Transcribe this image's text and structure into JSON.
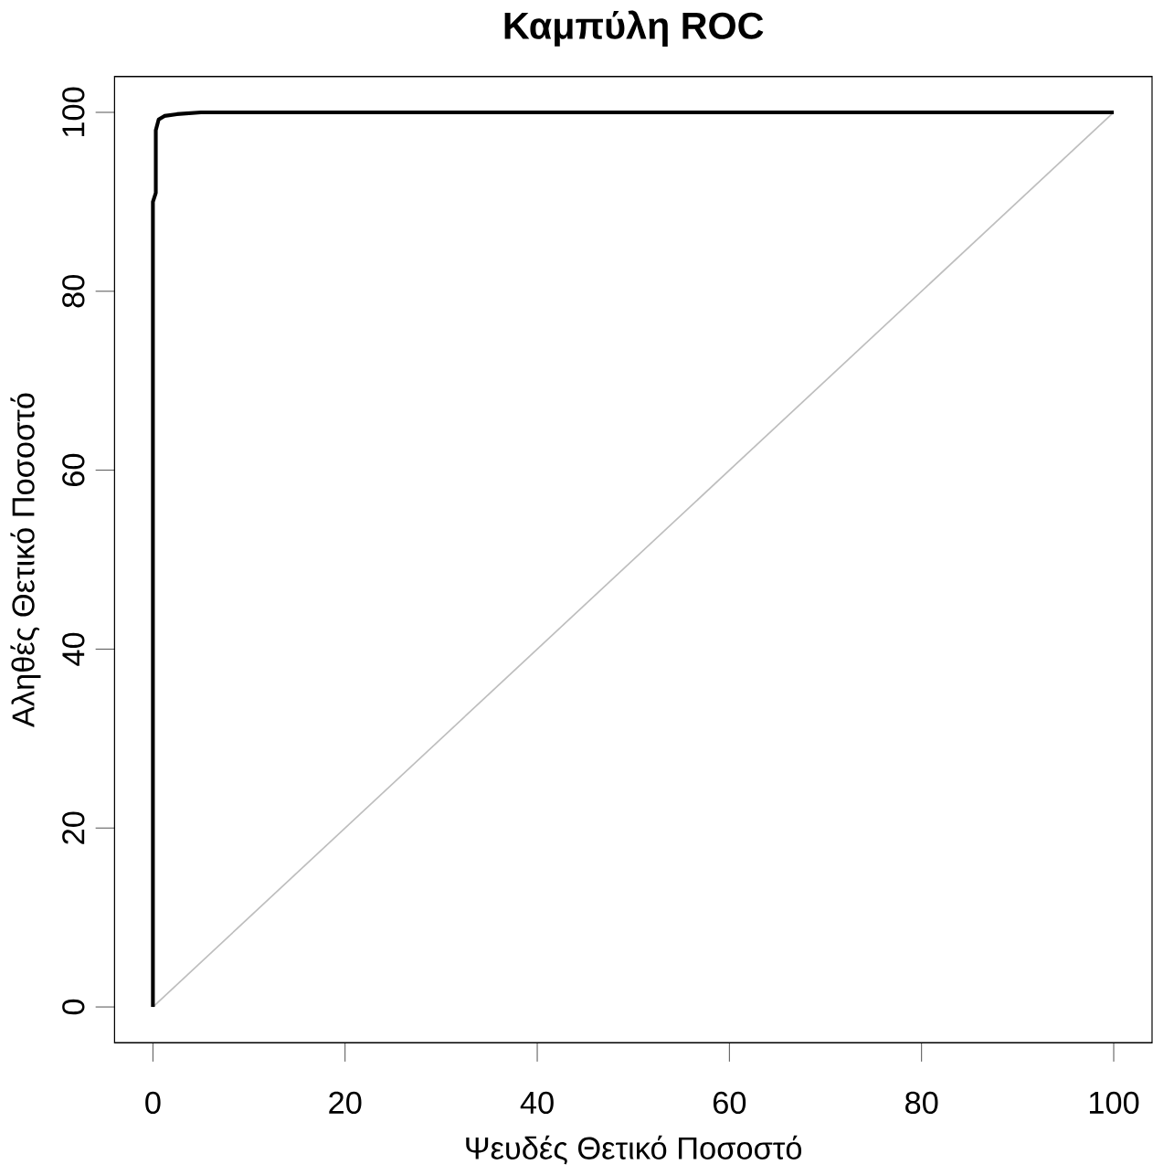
{
  "chart_data": {
    "type": "line",
    "title": "Καμπύλη ROC",
    "xlabel": "Ψευδές Θετικό Ποσοστό",
    "ylabel": "Αληθές Θετικό Ποσοστό",
    "xlim": [
      -4,
      104
    ],
    "ylim": [
      -4,
      104
    ],
    "xticks": [
      0,
      20,
      40,
      60,
      80,
      100
    ],
    "yticks": [
      0,
      20,
      40,
      60,
      80,
      100
    ],
    "marker": "none",
    "line_style": "solid",
    "series": [
      {
        "color": "#bebebe",
        "x": [
          0,
          100
        ],
        "values": [
          0,
          100
        ]
      },
      {
        "color": "#000000",
        "x": [
          0,
          0,
          0.3,
          0.3,
          0.6,
          1.2,
          2.5,
          5,
          100
        ],
        "values": [
          0,
          90,
          91,
          98,
          99.2,
          99.6,
          99.8,
          100,
          100
        ]
      }
    ]
  }
}
